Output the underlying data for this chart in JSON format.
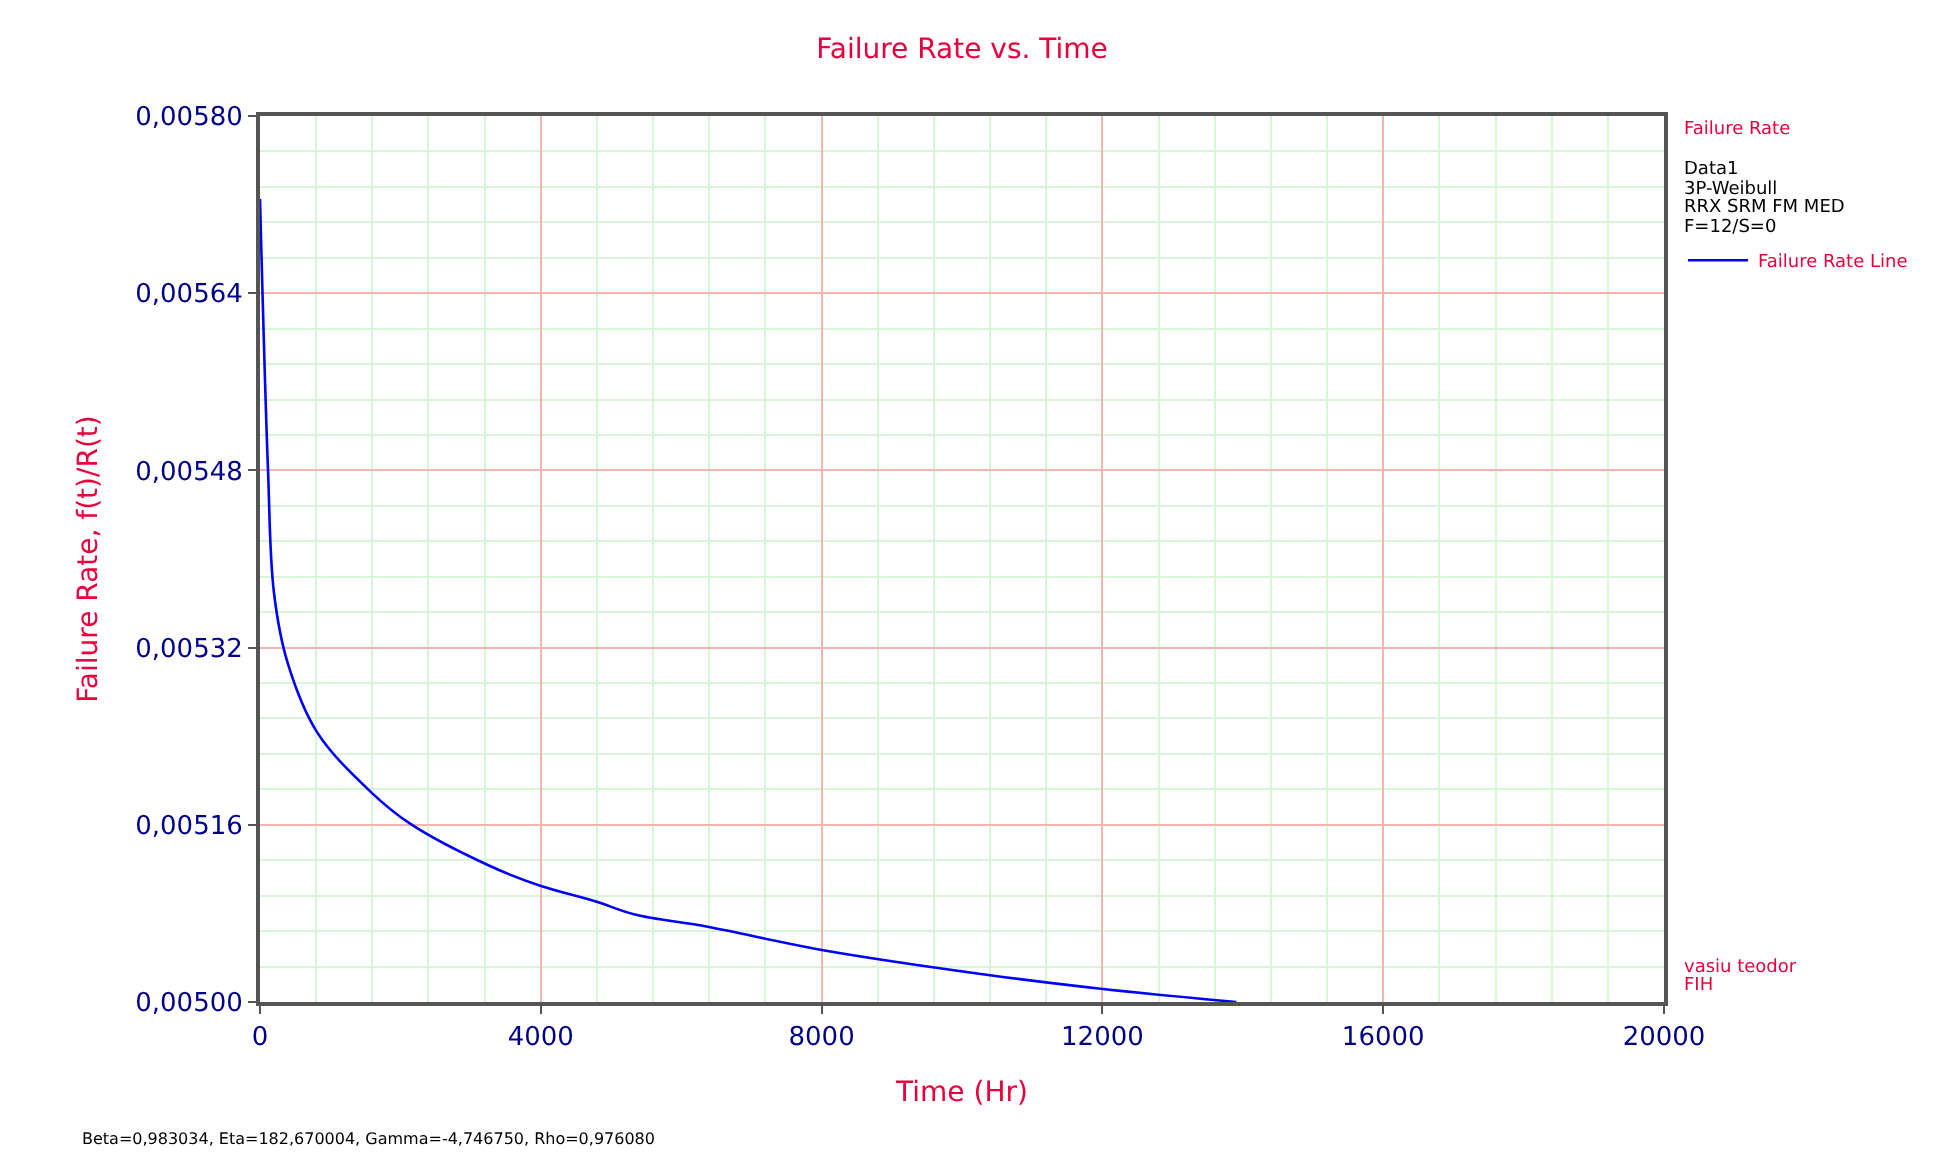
{
  "chart_data": {
    "type": "line",
    "title": "Failure Rate vs. Time",
    "xlabel": "Time (Hr)",
    "ylabel": "Failure Rate, f(t)/R(t)",
    "legend_title": "Failure Rate",
    "x": [
      0,
      113,
      198,
      395,
      819,
      1573,
      2138,
      3268,
      3992,
      4774,
      5339,
      6376,
      8003,
      10424,
      11977,
      13907
    ],
    "series": [
      {
        "name": "Failure Rate Line",
        "color": "#0000ff",
        "values": [
          0.005725,
          0.005482,
          0.00537,
          0.005306,
          0.005243,
          0.00519,
          0.005161,
          0.005123,
          0.005105,
          0.005091,
          0.005079,
          0.005068,
          0.005047,
          0.005024,
          0.005012,
          0.005
        ]
      }
    ],
    "xlim": [
      0,
      20000
    ],
    "xticks": [
      0,
      4000,
      8000,
      12000,
      16000,
      20000
    ],
    "ylim": [
      0.005,
      0.0058
    ],
    "yticks": [
      {
        "value": 0.005,
        "label": "0,00500"
      },
      {
        "value": 0.00516,
        "label": "0,00516"
      },
      {
        "value": 0.00532,
        "label": "0,00532"
      },
      {
        "value": 0.00548,
        "label": "0,00548"
      },
      {
        "value": 0.00564,
        "label": "0,00564"
      },
      {
        "value": 0.0058,
        "label": "0,00580"
      }
    ],
    "grid": true,
    "legend": "top right",
    "marker": "none",
    "line_style": "solid",
    "annotations": [
      "Data1",
      "3P-Weibull",
      "RRX SRM FM MED",
      "F=12/S=0",
      "vasiu teodor",
      "FIH",
      "Beta=0,983034, Eta=182,670004, Gamma=-4,746750, Rho=0,976080"
    ]
  }
}
